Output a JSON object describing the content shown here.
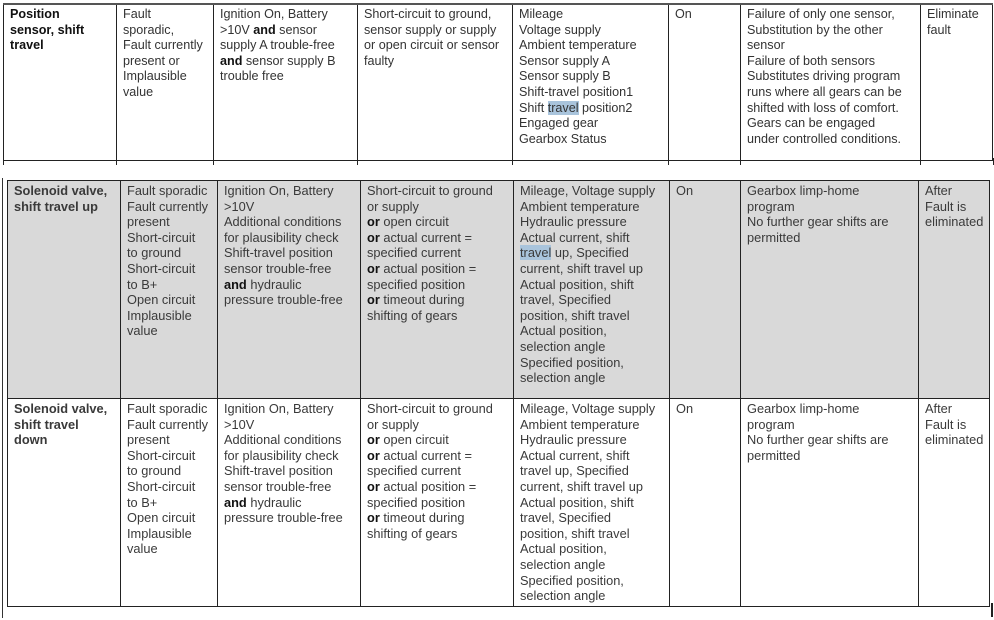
{
  "top_row": [
    [
      [
        {
          "t": "Position"
        }
      ],
      [
        {
          "t": "sensor, shift"
        }
      ],
      [
        {
          "t": "travel"
        }
      ]
    ],
    [
      [
        {
          "t": "Fault"
        }
      ],
      [
        {
          "t": "sporadic,"
        }
      ],
      [
        {
          "t": "Fault currently"
        }
      ],
      [
        {
          "t": "present or"
        }
      ],
      [
        {
          "t": "Implausible"
        }
      ],
      [
        {
          "t": "value"
        }
      ]
    ],
    [
      [
        {
          "t": "Ignition On, Battery"
        }
      ],
      [
        {
          "t": ">10V "
        },
        {
          "t": "and",
          "b": true
        },
        {
          "t": " sensor"
        }
      ],
      [
        {
          "t": "supply A trouble-free"
        }
      ],
      [
        {
          "t": "and",
          "b": true
        },
        {
          "t": " sensor supply B"
        }
      ],
      [
        {
          "t": "trouble free"
        }
      ]
    ],
    [
      [
        {
          "t": "Short-circuit to ground,"
        }
      ],
      [
        {
          "t": "sensor supply or supply"
        }
      ],
      [
        {
          "t": "or open circuit or sensor"
        }
      ],
      [
        {
          "t": "faulty"
        }
      ]
    ],
    [
      [
        {
          "t": "Mileage"
        }
      ],
      [
        {
          "t": "Voltage supply"
        }
      ],
      [
        {
          "t": "Ambient temperature"
        }
      ],
      [
        {
          "t": "Sensor supply A"
        }
      ],
      [
        {
          "t": "Sensor supply B"
        }
      ],
      [
        {
          "t": "Shift-travel position1"
        }
      ],
      [
        {
          "t": "Shift "
        },
        {
          "t": "travel",
          "h": true
        },
        {
          "t": " position2"
        }
      ],
      [
        {
          "t": "Engaged gear"
        }
      ],
      [
        {
          "t": "Gearbox Status"
        }
      ]
    ],
    [
      [
        {
          "t": "On"
        }
      ]
    ],
    [
      [
        {
          "t": "Failure of only one sensor,"
        }
      ],
      [
        {
          "t": "Substitution by the other"
        }
      ],
      [
        {
          "t": "sensor"
        }
      ],
      [
        {
          "t": "Failure of both sensors"
        }
      ],
      [
        {
          "t": "Substitutes driving program"
        }
      ],
      [
        {
          "t": "runs where all gears can be"
        }
      ],
      [
        {
          "t": "shifted with loss of comfort."
        }
      ],
      [
        {
          "t": "Gears can be engaged"
        }
      ],
      [
        {
          "t": "under controlled conditions."
        }
      ]
    ],
    [
      [
        {
          "t": "Eliminate"
        }
      ],
      [
        {
          "t": "fault"
        }
      ]
    ]
  ],
  "rows": [
    [
      [
        [
          {
            "t": "Solenoid valve,"
          }
        ],
        [
          {
            "t": "shift travel up"
          }
        ]
      ],
      [
        [
          {
            "t": "Fault sporadic"
          }
        ],
        [
          {
            "t": "Fault currently"
          }
        ],
        [
          {
            "t": "present"
          }
        ],
        [
          {
            "t": "Short-circuit"
          }
        ],
        [
          {
            "t": "to ground"
          }
        ],
        [
          {
            "t": "Short-circuit"
          }
        ],
        [
          {
            "t": "to B+"
          }
        ],
        [
          {
            "t": "Open circuit"
          }
        ],
        [
          {
            "t": "Implausible"
          }
        ],
        [
          {
            "t": "value"
          }
        ]
      ],
      [
        [
          {
            "t": "Ignition On, Battery"
          }
        ],
        [
          {
            "t": ">10V"
          }
        ],
        [
          {
            "t": "Additional conditions"
          }
        ],
        [
          {
            "t": "for plausibility check"
          }
        ],
        [
          {
            "t": "Shift-travel position"
          }
        ],
        [
          {
            "t": "sensor trouble-free"
          }
        ],
        [
          {
            "t": "and",
            "b": true
          },
          {
            "t": " hydraulic"
          }
        ],
        [
          {
            "t": "pressure trouble-free"
          }
        ]
      ],
      [
        [
          {
            "t": "Short-circuit to ground"
          }
        ],
        [
          {
            "t": "or supply"
          }
        ],
        [
          {
            "t": "or",
            "b": true
          },
          {
            "t": " open circuit"
          }
        ],
        [
          {
            "t": "or",
            "b": true
          },
          {
            "t": " actual current ="
          }
        ],
        [
          {
            "t": "specified current"
          }
        ],
        [
          {
            "t": "or",
            "b": true
          },
          {
            "t": " actual position ="
          }
        ],
        [
          {
            "t": "specified position"
          }
        ],
        [
          {
            "t": "or",
            "b": true
          },
          {
            "t": " timeout during"
          }
        ],
        [
          {
            "t": "shifting of gears"
          }
        ]
      ],
      [
        [
          {
            "t": "Mileage, Voltage supply"
          }
        ],
        [
          {
            "t": "Ambient temperature"
          }
        ],
        [
          {
            "t": "Hydraulic pressure"
          }
        ],
        [
          {
            "t": "Actual current, shift"
          }
        ],
        [
          {
            "t": "travel",
            "h": true
          },
          {
            "t": " up, Specified"
          }
        ],
        [
          {
            "t": "current, shift travel up"
          }
        ],
        [
          {
            "t": "Actual position, shift"
          }
        ],
        [
          {
            "t": "travel, Specified"
          }
        ],
        [
          {
            "t": "position, shift travel"
          }
        ],
        [
          {
            "t": "Actual position,"
          }
        ],
        [
          {
            "t": "selection angle"
          }
        ],
        [
          {
            "t": "Specified position,"
          }
        ],
        [
          {
            "t": "selection angle"
          }
        ]
      ],
      [
        [
          {
            "t": "On"
          }
        ]
      ],
      [
        [
          {
            "t": "Gearbox limp-home"
          }
        ],
        [
          {
            "t": "program"
          }
        ],
        [
          {
            "t": "No further gear shifts are"
          }
        ],
        [
          {
            "t": "permitted"
          }
        ]
      ],
      [
        [
          {
            "t": "After"
          }
        ],
        [
          {
            "t": "Fault is"
          }
        ],
        [
          {
            "t": "eliminated"
          }
        ]
      ]
    ],
    [
      [
        [
          {
            "t": "Solenoid valve,"
          }
        ],
        [
          {
            "t": "shift travel"
          }
        ],
        [
          {
            "t": "down"
          }
        ]
      ],
      [
        [
          {
            "t": "Fault sporadic"
          }
        ],
        [
          {
            "t": "Fault currently"
          }
        ],
        [
          {
            "t": "present"
          }
        ],
        [
          {
            "t": "Short-circuit"
          }
        ],
        [
          {
            "t": "to ground"
          }
        ],
        [
          {
            "t": "Short-circuit"
          }
        ],
        [
          {
            "t": "to B+"
          }
        ],
        [
          {
            "t": "Open circuit"
          }
        ],
        [
          {
            "t": "Implausible"
          }
        ],
        [
          {
            "t": "value"
          }
        ]
      ],
      [
        [
          {
            "t": "Ignition On, Battery"
          }
        ],
        [
          {
            "t": ">10V"
          }
        ],
        [
          {
            "t": "Additional conditions"
          }
        ],
        [
          {
            "t": "for plausibility check"
          }
        ],
        [
          {
            "t": "Shift-travel position"
          }
        ],
        [
          {
            "t": "sensor trouble-free"
          }
        ],
        [
          {
            "t": "and",
            "b": true
          },
          {
            "t": " hydraulic"
          }
        ],
        [
          {
            "t": "pressure trouble-free"
          }
        ]
      ],
      [
        [
          {
            "t": "Short-circuit to ground"
          }
        ],
        [
          {
            "t": "or supply"
          }
        ],
        [
          {
            "t": "or",
            "b": true
          },
          {
            "t": " open circuit"
          }
        ],
        [
          {
            "t": "or",
            "b": true
          },
          {
            "t": " actual current ="
          }
        ],
        [
          {
            "t": "specified current"
          }
        ],
        [
          {
            "t": "or",
            "b": true
          },
          {
            "t": " actual position ="
          }
        ],
        [
          {
            "t": "specified position"
          }
        ],
        [
          {
            "t": "or",
            "b": true
          },
          {
            "t": " timeout during"
          }
        ],
        [
          {
            "t": "shifting of gears"
          }
        ]
      ],
      [
        [
          {
            "t": "Mileage, Voltage supply"
          }
        ],
        [
          {
            "t": "Ambient temperature"
          }
        ],
        [
          {
            "t": "Hydraulic pressure"
          }
        ],
        [
          {
            "t": "Actual current, shift"
          }
        ],
        [
          {
            "t": "travel up, Specified"
          }
        ],
        [
          {
            "t": "current, shift travel up"
          }
        ],
        [
          {
            "t": "Actual position, shift"
          }
        ],
        [
          {
            "t": "travel, Specified"
          }
        ],
        [
          {
            "t": "position, shift travel"
          }
        ],
        [
          {
            "t": "Actual position,"
          }
        ],
        [
          {
            "t": "selection angle"
          }
        ],
        [
          {
            "t": "Specified position,"
          }
        ],
        [
          {
            "t": "selection angle"
          }
        ]
      ],
      [
        [
          {
            "t": "On"
          }
        ]
      ],
      [
        [
          {
            "t": "Gearbox limp-home"
          }
        ],
        [
          {
            "t": "program"
          }
        ],
        [
          {
            "t": "No further gear shifts are"
          }
        ],
        [
          {
            "t": "permitted"
          }
        ]
      ],
      [
        [
          {
            "t": "After"
          }
        ],
        [
          {
            "t": "Fault is"
          }
        ],
        [
          {
            "t": "eliminated"
          }
        ]
      ]
    ]
  ],
  "colors": {
    "grey_row": "#d9d9d9",
    "highlight": "#a9c4dc"
  }
}
